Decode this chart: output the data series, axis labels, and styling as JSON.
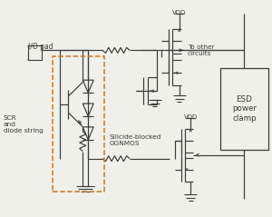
{
  "bg": "#f0f0ea",
  "lc": "#3a3a3a",
  "dash_color": "#cc7722",
  "lw": 0.85,
  "fs_label": 5.8,
  "fs_small": 5.0,
  "figsize": [
    3.0,
    2.39
  ],
  "dpi": 100,
  "io_pad_label": "I/O pad",
  "scr_label": "SCR\nand\ndiode string",
  "silicide_label": "Silicide-blocked\nGGNMOS",
  "esd_label": "ESD\npower\nclamp",
  "to_other_label": "To other\ncircuits",
  "vdd_label": "VDD"
}
